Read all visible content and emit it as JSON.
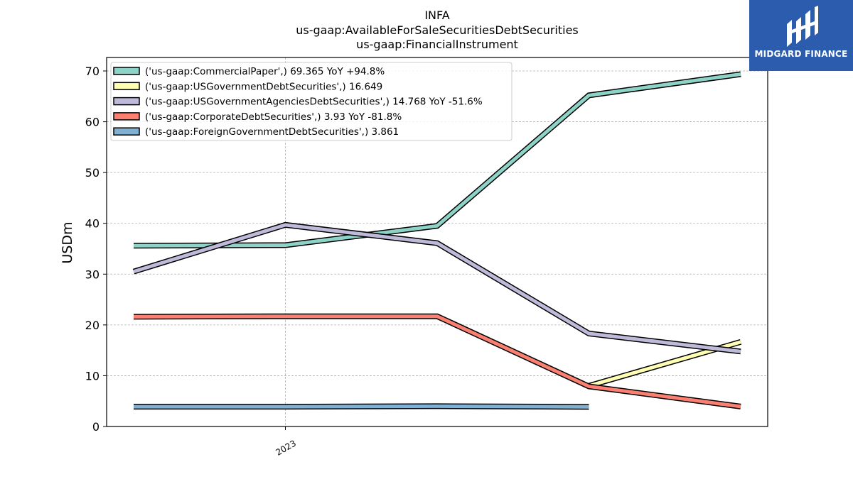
{
  "chart_data": {
    "type": "line",
    "title_lines": [
      "INFA",
      "us-gaap:AvailableForSaleSecuritiesDebtSecurities",
      "us-gaap:FinancialInstrument"
    ],
    "ylabel": "USDm",
    "xlabel": "",
    "ylim": [
      0,
      72.5
    ],
    "yticks": [
      0,
      10,
      20,
      30,
      40,
      50,
      60,
      70
    ],
    "xticks": [
      {
        "label": "2023",
        "position": 1
      }
    ],
    "x": [
      0,
      1,
      2,
      3,
      4
    ],
    "grid": true,
    "legend_position": "top-left",
    "series": [
      {
        "name": "('us-gaap:CommercialPaper',) 69.365 YoY +94.8%",
        "color": "#8dd3c7",
        "values": [
          35.6,
          35.7,
          39.5,
          65.2,
          69.365
        ]
      },
      {
        "name": "('us-gaap:USGovernmentDebtSecurities',) 16.649",
        "color": "#ffffb3",
        "values": [
          null,
          null,
          null,
          8.0,
          16.649
        ]
      },
      {
        "name": "('us-gaap:USGovernmentAgenciesDebtSecurities',) 14.768 YoY -51.6%",
        "color": "#bebada",
        "values": [
          30.5,
          39.7,
          36.1,
          18.3,
          14.768
        ]
      },
      {
        "name": "('us-gaap:CorporateDebtSecurities',) 3.93 YoY -81.8%",
        "color": "#fb8072",
        "values": [
          21.6,
          21.7,
          21.7,
          7.9,
          3.93
        ]
      },
      {
        "name": "('us-gaap:ForeignGovernmentDebtSecurities',) 3.861",
        "color": "#80b1d3",
        "values": [
          3.9,
          3.9,
          4.0,
          3.861,
          null
        ]
      }
    ]
  },
  "logo": {
    "text": "MIDGARD FINANCE"
  }
}
